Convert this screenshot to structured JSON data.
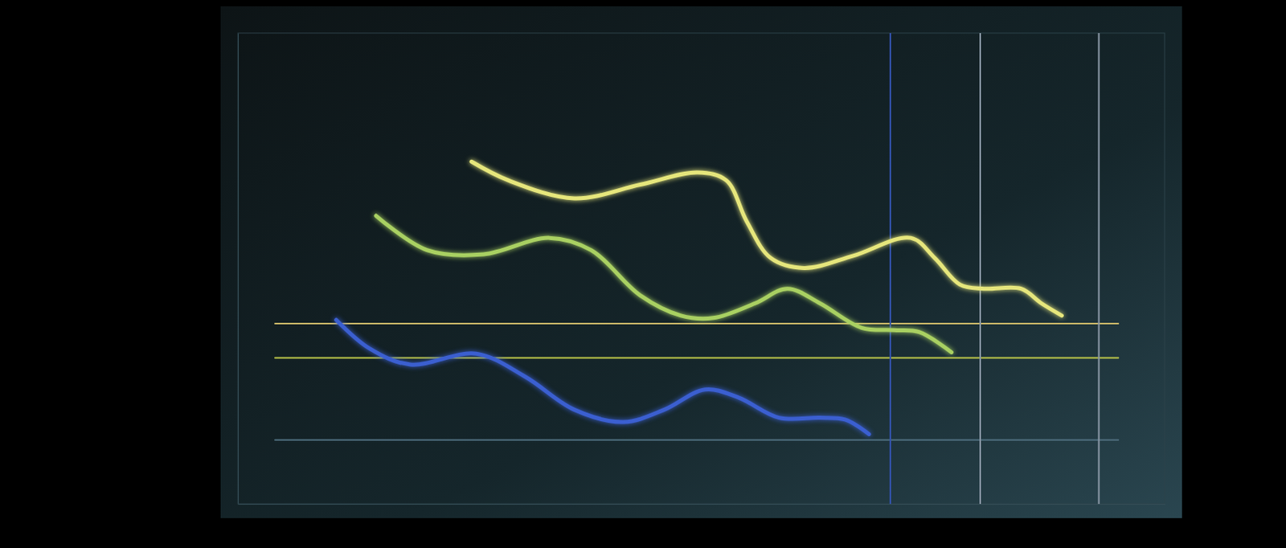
{
  "chart_data": {
    "type": "line",
    "xlim": [
      0,
      100
    ],
    "ylim": [
      0,
      100
    ],
    "xticks": [],
    "yticks": [],
    "tick_labels": false,
    "grid": false,
    "series": [
      {
        "color": "#e6e67c",
        "x": [
          25.2,
          29.2,
          36.3,
          43.4,
          49.6,
          52.7,
          54.9,
          57.5,
          61.1,
          66.4,
          72.6,
          75.2,
          77.9,
          80.5,
          84.5,
          86.7,
          88.9
        ],
        "values": [
          72.7,
          68.7,
          64.9,
          67.8,
          70.4,
          68.7,
          60.0,
          52.2,
          50.1,
          52.7,
          56.5,
          52.2,
          46.6,
          45.7,
          45.7,
          42.6,
          40.0
        ]
      },
      {
        "color": "#a9d062",
        "x": [
          14.9,
          20.4,
          26.5,
          33.6,
          38.1,
          43.4,
          47.8,
          51.3,
          55.8,
          59.3,
          62.8,
          67.3,
          70.8,
          73.5,
          77.0
        ],
        "values": [
          61.2,
          53.9,
          53.0,
          56.5,
          53.9,
          44.3,
          40.0,
          39.5,
          42.6,
          45.7,
          42.6,
          37.4,
          36.9,
          36.5,
          32.2
        ]
      },
      {
        "color": "#3b5fd0",
        "x": [
          10.6,
          14.2,
          18.6,
          25.7,
          31.0,
          36.3,
          41.6,
          46.0,
          50.4,
          54.0,
          58.4,
          62.8,
          65.5,
          68.1
        ],
        "values": [
          39.1,
          33.0,
          29.6,
          31.9,
          27.0,
          20.0,
          17.4,
          20.0,
          24.3,
          22.6,
          18.3,
          18.3,
          17.9,
          14.8
        ]
      },
      {
        "color": "#cbb868",
        "type": "reference",
        "x": [
          4.0,
          95.0
        ],
        "values": [
          38.3,
          38.3
        ]
      },
      {
        "color": "#b9c449",
        "type": "reference",
        "x": [
          4.0,
          95.0
        ],
        "values": [
          31.0,
          31.0
        ]
      },
      {
        "color": "#4d6c7c",
        "type": "reference",
        "x": [
          4.0,
          95.0
        ],
        "values": [
          13.6,
          13.6
        ]
      },
      {
        "color": "#3454b0",
        "type": "reference",
        "x": [
          70.4,
          70.4
        ],
        "values": [
          0,
          100
        ]
      },
      {
        "color": "#8a98a6",
        "type": "reference",
        "x": [
          80.1,
          80.1
        ],
        "values": [
          0,
          100
        ]
      },
      {
        "color": "#8a98a6",
        "type": "reference",
        "x": [
          92.9,
          92.9
        ],
        "values": [
          0,
          100
        ]
      }
    ]
  }
}
